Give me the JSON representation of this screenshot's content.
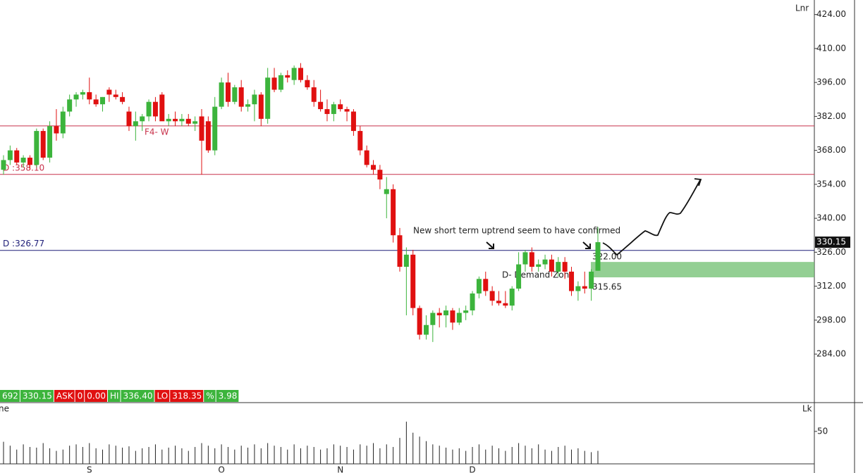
{
  "chart_data": {
    "type": "candlestick",
    "ylim": [
      264,
      430
    ],
    "yticks": [
      {
        "value": 424,
        "label": "424.00"
      },
      {
        "value": 410,
        "label": "410.00"
      },
      {
        "value": 396,
        "label": "396.00"
      },
      {
        "value": 382,
        "label": "382.00"
      },
      {
        "value": 368,
        "label": "368.00"
      },
      {
        "value": 354,
        "label": "354.00"
      },
      {
        "value": 340,
        "label": "340.00"
      },
      {
        "value": 326,
        "label": "326.00"
      },
      {
        "value": 312,
        "label": "312.00"
      },
      {
        "value": 298,
        "label": "298.00"
      },
      {
        "value": 284,
        "label": "284.00"
      }
    ],
    "up_color": "#3cb43c",
    "down_color": "#e01010",
    "categories": [
      null,
      null,
      null,
      null,
      null,
      null,
      null,
      null,
      null,
      null,
      null,
      null,
      null,
      "S",
      null,
      null,
      null,
      null,
      null,
      null,
      null,
      null,
      null,
      null,
      null,
      null,
      null,
      null,
      null,
      null,
      null,
      null,
      null,
      "O",
      null,
      null,
      null,
      null,
      null,
      null,
      null,
      null,
      null,
      null,
      null,
      null,
      null,
      null,
      null,
      null,
      null,
      "N",
      null,
      null,
      null,
      null,
      null,
      null,
      null,
      null,
      null,
      null,
      null,
      null,
      null,
      null,
      null,
      null,
      null,
      null,
      null,
      "D",
      null,
      null,
      null,
      null,
      null,
      null,
      null,
      null,
      null,
      null,
      null,
      null,
      null,
      null,
      null,
      null,
      null,
      null,
      null
    ],
    "open": [
      360,
      364,
      368,
      363,
      365,
      362,
      376,
      365,
      378,
      375,
      384,
      389,
      391,
      392,
      389,
      387,
      393,
      391,
      390,
      384,
      378,
      380,
      382,
      388,
      391,
      380,
      381,
      380,
      381,
      379,
      382,
      380,
      368,
      386,
      396,
      388,
      394,
      386,
      387,
      391,
      381,
      398,
      393,
      399,
      397,
      402,
      397,
      394,
      388,
      385,
      383,
      387,
      385,
      384,
      376,
      368,
      362,
      360,
      350,
      352,
      333,
      320,
      325,
      303,
      292,
      296,
      301,
      300,
      302,
      297,
      301,
      302,
      309,
      315,
      310,
      306,
      305,
      304,
      311,
      321,
      326,
      320,
      321,
      323,
      318,
      322,
      318,
      310,
      312,
      311,
      318.35
    ],
    "high": [
      366,
      370,
      369,
      366,
      366,
      377,
      377,
      380,
      385,
      386,
      391,
      392,
      393,
      398,
      391,
      390,
      394,
      393,
      392,
      386,
      384,
      383,
      389,
      390,
      392,
      383,
      384,
      383,
      383,
      382,
      385,
      382,
      390,
      398,
      400,
      395,
      397,
      389,
      393,
      392,
      402,
      402,
      400,
      401,
      403,
      404,
      399,
      397,
      393,
      389,
      388,
      389,
      386,
      385,
      378,
      370,
      364,
      362,
      357,
      354,
      336,
      328,
      327,
      304,
      300,
      302,
      303,
      304,
      303,
      303,
      304,
      310,
      316,
      318,
      312,
      310,
      310,
      312,
      326,
      327,
      328,
      323,
      325,
      325,
      324,
      324,
      320,
      314,
      318,
      319,
      336.4
    ],
    "low": [
      358,
      362,
      362,
      361,
      360,
      361,
      364,
      363,
      372,
      373,
      382,
      386,
      389,
      387,
      386,
      384,
      388,
      389,
      387,
      376,
      372,
      376,
      380,
      380,
      381,
      378,
      378,
      378,
      378,
      376,
      358,
      367,
      366,
      385,
      386,
      387,
      384,
      384,
      380,
      378,
      379,
      392,
      392,
      396,
      395,
      396,
      393,
      386,
      384,
      380,
      380,
      384,
      380,
      374,
      366,
      361,
      358,
      352,
      340,
      330,
      318,
      300,
      300,
      290,
      290,
      289,
      295,
      295,
      294,
      296,
      298,
      300,
      307,
      308,
      304,
      304,
      303,
      302,
      310,
      318,
      318,
      318,
      319,
      316,
      316,
      315,
      308,
      306,
      309,
      306,
      318.35
    ],
    "close": [
      364,
      368,
      363,
      365,
      362,
      376,
      365,
      378,
      375,
      384,
      389,
      391,
      392,
      389,
      387,
      390,
      391,
      390,
      388,
      378,
      380,
      382,
      388,
      382,
      380,
      381,
      380,
      381,
      379,
      380,
      372,
      368,
      386,
      396,
      388,
      394,
      386,
      387,
      391,
      381,
      398,
      393,
      399,
      398,
      402,
      397,
      394,
      388,
      385,
      383,
      387,
      385,
      384,
      376,
      368,
      362,
      360,
      356,
      352,
      333,
      320,
      325,
      303,
      292,
      296,
      301,
      300,
      302,
      297,
      301,
      302,
      309,
      315,
      310,
      306,
      305,
      304,
      311,
      321,
      326,
      320,
      321,
      323,
      318,
      322,
      318,
      310,
      312,
      311,
      318,
      330.15
    ],
    "volume": [
      34,
      28,
      22,
      30,
      26,
      25,
      32,
      24,
      20,
      22,
      28,
      30,
      26,
      32,
      24,
      22,
      30,
      28,
      25,
      27,
      20,
      24,
      26,
      30,
      22,
      25,
      28,
      24,
      20,
      26,
      32,
      28,
      24,
      30,
      26,
      22,
      28,
      25,
      30,
      24,
      32,
      28,
      26,
      22,
      30,
      24,
      28,
      26,
      22,
      24,
      30,
      28,
      26,
      22,
      30,
      28,
      32,
      24,
      30,
      26,
      40,
      65,
      48,
      42,
      35,
      30,
      28,
      25,
      22,
      24,
      20,
      26,
      30,
      22,
      28,
      24,
      20,
      26,
      32,
      28,
      24,
      30,
      22,
      20,
      26,
      28,
      22,
      24,
      20,
      18,
      20
    ],
    "vlim": [
      0,
      90
    ],
    "vticks": [
      50
    ],
    "levels": [
      {
        "value": 378.1,
        "label": "F4- W",
        "color": "#c8324b"
      },
      {
        "value": 358.1,
        "label": "D :358.10",
        "color": "#c8324b"
      },
      {
        "value": 326.77,
        "label": "D :326.77",
        "color": "#1e1e78"
      }
    ],
    "zone": {
      "label": "D- Demand Zone",
      "top": {
        "value": 322,
        "label": "322.00"
      },
      "bottom": {
        "value": 315.65,
        "label": "315.65"
      },
      "color": "#6fbf6f"
    },
    "last_price": {
      "value": 330.15,
      "label": "330.15"
    },
    "annotation": "New short term uptrend seem to have confirmed",
    "info_bar": [
      "692",
      "330.15",
      "ASK",
      "0",
      "0.00",
      "HI",
      "336.40",
      "LO",
      "318.35",
      "%",
      "3.98"
    ],
    "panel_labels": [
      "Lnr",
      "Lk",
      "ne"
    ]
  }
}
